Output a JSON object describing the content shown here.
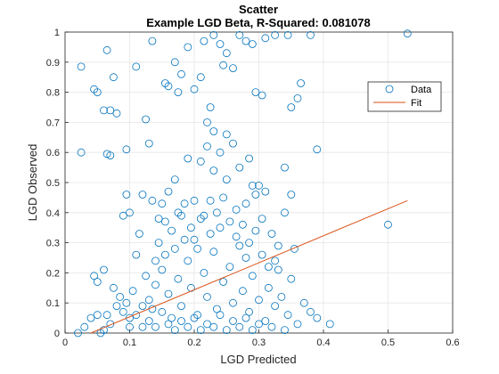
{
  "chart_data": {
    "type": "scatter",
    "title": "Scatter",
    "subtitle": "Example LGD Beta, R-Squared: 0.081078",
    "xlabel": "LGD Predicted",
    "ylabel": "LGD Observed",
    "xlim": [
      0,
      0.6
    ],
    "ylim": [
      0,
      1
    ],
    "xticks": [
      "0",
      "0.1",
      "0.2",
      "0.3",
      "0.4",
      "0.5",
      "0.6"
    ],
    "yticks": [
      "0",
      "0.1",
      "0.2",
      "0.3",
      "0.4",
      "0.5",
      "0.6",
      "0.7",
      "0.8",
      "0.9",
      "1"
    ],
    "grid": true,
    "legend_position": "top-right",
    "colors": {
      "data": "#0072bd",
      "fit": "#d95319"
    },
    "series": [
      {
        "name": "Data",
        "style": "markers",
        "points": [
          [
            0.025,
            0.885
          ],
          [
            0.045,
            0.81
          ],
          [
            0.05,
            0.8
          ],
          [
            0.06,
            0.74
          ],
          [
            0.07,
            0.74
          ],
          [
            0.065,
            0.94
          ],
          [
            0.075,
            0.85
          ],
          [
            0.08,
            0.73
          ],
          [
            0.11,
            0.885
          ],
          [
            0.135,
            0.97
          ],
          [
            0.095,
            0.61
          ],
          [
            0.025,
            0.6
          ],
          [
            0.065,
            0.595
          ],
          [
            0.07,
            0.59
          ],
          [
            0.095,
            0.46
          ],
          [
            0.12,
            0.46
          ],
          [
            0.1,
            0.4
          ],
          [
            0.09,
            0.39
          ],
          [
            0.13,
            0.63
          ],
          [
            0.125,
            0.71
          ],
          [
            0.155,
            0.83
          ],
          [
            0.16,
            0.82
          ],
          [
            0.17,
            0.9
          ],
          [
            0.18,
            0.86
          ],
          [
            0.19,
            0.95
          ],
          [
            0.175,
            0.8
          ],
          [
            0.2,
            0.81
          ],
          [
            0.21,
            0.85
          ],
          [
            0.215,
            0.97
          ],
          [
            0.22,
            0.7
          ],
          [
            0.225,
            0.75
          ],
          [
            0.23,
            0.99
          ],
          [
            0.24,
            0.96
          ],
          [
            0.245,
            0.89
          ],
          [
            0.25,
            0.93
          ],
          [
            0.26,
            0.88
          ],
          [
            0.27,
            0.99
          ],
          [
            0.28,
            0.97
          ],
          [
            0.29,
            0.96
          ],
          [
            0.295,
            0.8
          ],
          [
            0.305,
            0.79
          ],
          [
            0.31,
            0.98
          ],
          [
            0.325,
            0.99
          ],
          [
            0.345,
            0.99
          ],
          [
            0.35,
            0.75
          ],
          [
            0.36,
            0.78
          ],
          [
            0.365,
            0.83
          ],
          [
            0.38,
            0.99
          ],
          [
            0.39,
            0.61
          ],
          [
            0.5,
            0.36
          ],
          [
            0.53,
            0.995
          ],
          [
            0.04,
            0.05
          ],
          [
            0.03,
            0.02
          ],
          [
            0.02,
            0.0
          ],
          [
            0.05,
            0.06
          ],
          [
            0.055,
            0.0
          ],
          [
            0.06,
            0.01
          ],
          [
            0.065,
            0.06
          ],
          [
            0.07,
            0.03
          ],
          [
            0.075,
            0.15
          ],
          [
            0.08,
            0.09
          ],
          [
            0.05,
            0.17
          ],
          [
            0.045,
            0.19
          ],
          [
            0.06,
            0.21
          ],
          [
            0.085,
            0.12
          ],
          [
            0.09,
            0.07
          ],
          [
            0.095,
            0.1
          ],
          [
            0.1,
            0.05
          ],
          [
            0.105,
            0.14
          ],
          [
            0.11,
            0.26
          ],
          [
            0.115,
            0.33
          ],
          [
            0.12,
            0.02
          ],
          [
            0.125,
            0.19
          ],
          [
            0.13,
            0.11
          ],
          [
            0.135,
            0.08
          ],
          [
            0.14,
            0.16
          ],
          [
            0.145,
            0.3
          ],
          [
            0.15,
            0.21
          ],
          [
            0.155,
            0.37
          ],
          [
            0.16,
            0.13
          ],
          [
            0.165,
            0.05
          ],
          [
            0.17,
            0.28
          ],
          [
            0.175,
            0.18
          ],
          [
            0.18,
            0.09
          ],
          [
            0.185,
            0.43
          ],
          [
            0.19,
            0.24
          ],
          [
            0.195,
            0.15
          ],
          [
            0.2,
            0.31
          ],
          [
            0.205,
            0.06
          ],
          [
            0.21,
            0.38
          ],
          [
            0.215,
            0.2
          ],
          [
            0.22,
            0.12
          ],
          [
            0.225,
            0.44
          ],
          [
            0.23,
            0.27
          ],
          [
            0.235,
            0.08
          ],
          [
            0.24,
            0.35
          ],
          [
            0.245,
            0.17
          ],
          [
            0.25,
            0.51
          ],
          [
            0.255,
            0.22
          ],
          [
            0.26,
            0.1
          ],
          [
            0.265,
            0.41
          ],
          [
            0.27,
            0.29
          ],
          [
            0.275,
            0.14
          ],
          [
            0.28,
            0.25
          ],
          [
            0.285,
            0.07
          ],
          [
            0.29,
            0.19
          ],
          [
            0.295,
            0.46
          ],
          [
            0.3,
            0.11
          ],
          [
            0.305,
            0.26
          ],
          [
            0.31,
            0.04
          ],
          [
            0.315,
            0.15
          ],
          [
            0.32,
            0.33
          ],
          [
            0.325,
            0.09
          ],
          [
            0.33,
            0.21
          ],
          [
            0.335,
            0.12
          ],
          [
            0.34,
            0.4
          ],
          [
            0.345,
            0.06
          ],
          [
            0.35,
            0.18
          ],
          [
            0.36,
            0.03
          ],
          [
            0.37,
            0.1
          ],
          [
            0.38,
            0.07
          ],
          [
            0.39,
            0.05
          ],
          [
            0.41,
            0.03
          ],
          [
            0.355,
            0.28
          ],
          [
            0.33,
            0.29
          ],
          [
            0.31,
            0.47
          ],
          [
            0.3,
            0.49
          ],
          [
            0.29,
            0.49
          ],
          [
            0.34,
            0.55
          ],
          [
            0.35,
            0.46
          ],
          [
            0.1,
            0.02
          ],
          [
            0.11,
            0.06
          ],
          [
            0.12,
            0.09
          ],
          [
            0.13,
            0.04
          ],
          [
            0.14,
            0.02
          ],
          [
            0.15,
            0.07
          ],
          [
            0.16,
            0.03
          ],
          [
            0.17,
            0.01
          ],
          [
            0.18,
            0.04
          ],
          [
            0.19,
            0.02
          ],
          [
            0.2,
            0.05
          ],
          [
            0.21,
            0.01
          ],
          [
            0.22,
            0.03
          ],
          [
            0.23,
            0.02
          ],
          [
            0.24,
            0.06
          ],
          [
            0.25,
            0.01
          ],
          [
            0.26,
            0.04
          ],
          [
            0.27,
            0.02
          ],
          [
            0.28,
            0.05
          ],
          [
            0.29,
            0.01
          ],
          [
            0.3,
            0.03
          ],
          [
            0.32,
            0.02
          ],
          [
            0.34,
            0.01
          ],
          [
            0.14,
            0.24
          ],
          [
            0.15,
            0.43
          ],
          [
            0.16,
            0.47
          ],
          [
            0.17,
            0.51
          ],
          [
            0.18,
            0.39
          ],
          [
            0.19,
            0.58
          ],
          [
            0.2,
            0.44
          ],
          [
            0.21,
            0.57
          ],
          [
            0.22,
            0.62
          ],
          [
            0.23,
            0.54
          ],
          [
            0.24,
            0.6
          ],
          [
            0.25,
            0.66
          ],
          [
            0.26,
            0.63
          ],
          [
            0.27,
            0.55
          ],
          [
            0.28,
            0.43
          ],
          [
            0.285,
            0.58
          ],
          [
            0.23,
            0.67
          ],
          [
            0.225,
            0.33
          ],
          [
            0.215,
            0.39
          ],
          [
            0.205,
            0.28
          ],
          [
            0.195,
            0.35
          ],
          [
            0.185,
            0.31
          ],
          [
            0.175,
            0.4
          ],
          [
            0.165,
            0.34
          ],
          [
            0.155,
            0.26
          ],
          [
            0.145,
            0.38
          ],
          [
            0.135,
            0.44
          ],
          [
            0.235,
            0.4
          ],
          [
            0.245,
            0.45
          ],
          [
            0.255,
            0.37
          ],
          [
            0.265,
            0.32
          ],
          [
            0.275,
            0.36
          ],
          [
            0.285,
            0.3
          ],
          [
            0.295,
            0.34
          ],
          [
            0.305,
            0.38
          ],
          [
            0.315,
            0.22
          ],
          [
            0.325,
            0.24
          ]
        ]
      },
      {
        "name": "Fit",
        "style": "line",
        "points": [
          [
            0.04,
            0.0
          ],
          [
            0.53,
            0.44
          ]
        ]
      }
    ]
  }
}
